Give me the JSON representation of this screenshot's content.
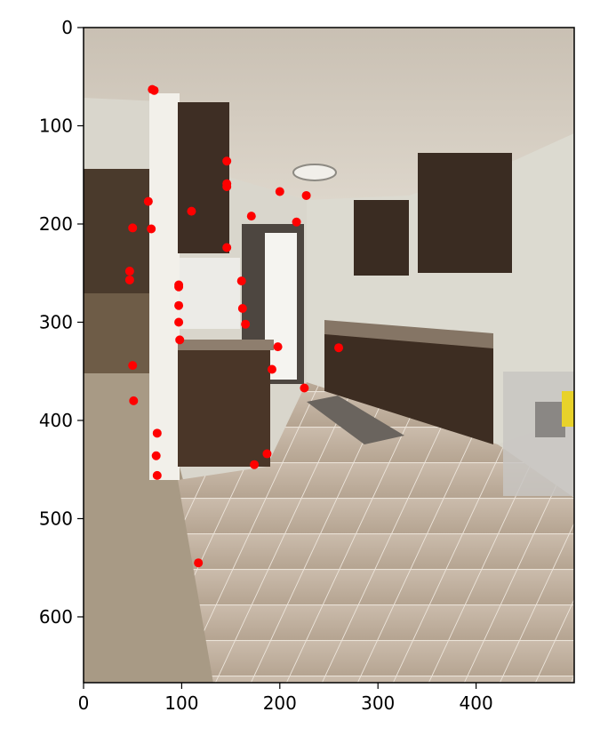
{
  "chart_data": {
    "type": "scatter",
    "title": "",
    "xlabel": "",
    "ylabel": "",
    "xlim": [
      0,
      500
    ],
    "ylim": [
      667,
      0
    ],
    "x_ticks": [
      0,
      100,
      200,
      300,
      400
    ],
    "y_ticks": [
      0,
      100,
      200,
      300,
      400,
      500,
      600
    ],
    "grid": false,
    "legend": "none",
    "background_image": "kitchen-photo",
    "marker_color": "#ff0000",
    "series": [
      {
        "points": [
          {
            "x": 70,
            "y": 63
          },
          {
            "x": 72,
            "y": 64
          },
          {
            "x": 146,
            "y": 136
          },
          {
            "x": 146,
            "y": 159
          },
          {
            "x": 146,
            "y": 162
          },
          {
            "x": 200,
            "y": 167
          },
          {
            "x": 227,
            "y": 171
          },
          {
            "x": 66,
            "y": 177
          },
          {
            "x": 110,
            "y": 187
          },
          {
            "x": 171,
            "y": 192
          },
          {
            "x": 217,
            "y": 198
          },
          {
            "x": 50,
            "y": 204
          },
          {
            "x": 69,
            "y": 205
          },
          {
            "x": 146,
            "y": 224
          },
          {
            "x": 47,
            "y": 248
          },
          {
            "x": 47,
            "y": 257
          },
          {
            "x": 161,
            "y": 258
          },
          {
            "x": 97,
            "y": 262
          },
          {
            "x": 97,
            "y": 264
          },
          {
            "x": 97,
            "y": 283
          },
          {
            "x": 162,
            "y": 286
          },
          {
            "x": 97,
            "y": 300
          },
          {
            "x": 165,
            "y": 302
          },
          {
            "x": 98,
            "y": 318
          },
          {
            "x": 198,
            "y": 325
          },
          {
            "x": 260,
            "y": 326
          },
          {
            "x": 50,
            "y": 344
          },
          {
            "x": 192,
            "y": 348
          },
          {
            "x": 225,
            "y": 367
          },
          {
            "x": 51,
            "y": 380
          },
          {
            "x": 75,
            "y": 413
          },
          {
            "x": 187,
            "y": 434
          },
          {
            "x": 74,
            "y": 436
          },
          {
            "x": 174,
            "y": 445
          },
          {
            "x": 75,
            "y": 456
          },
          {
            "x": 117,
            "y": 545
          }
        ]
      }
    ]
  }
}
